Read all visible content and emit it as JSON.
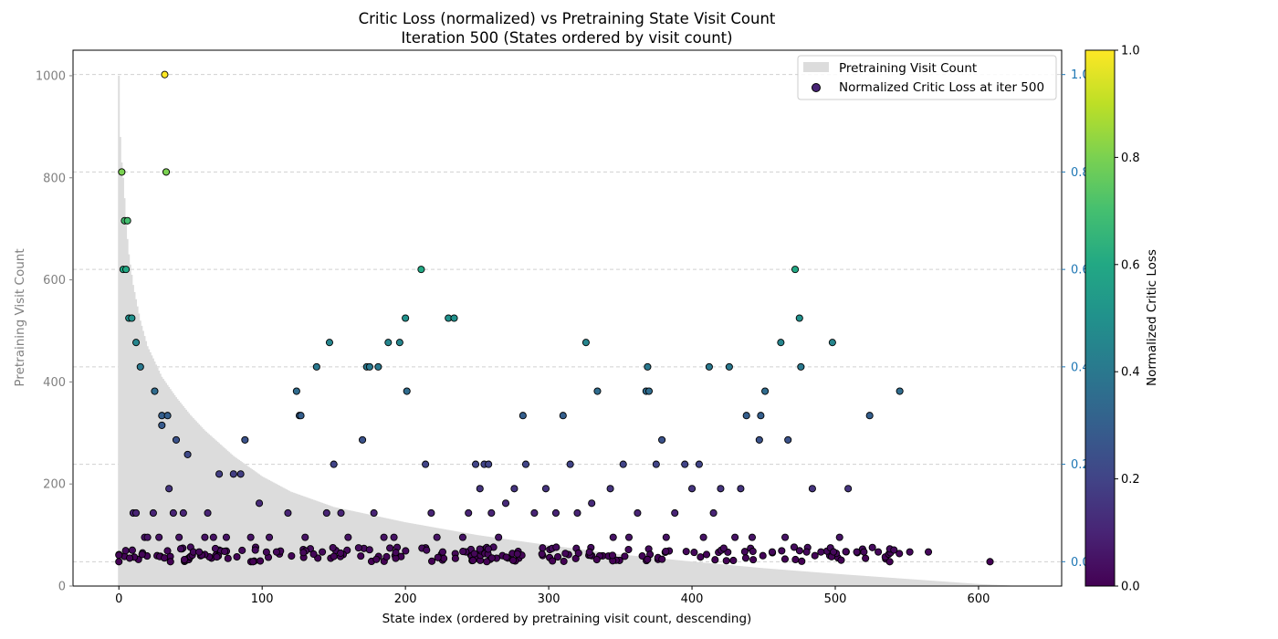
{
  "chart_data": {
    "type": "scatter",
    "title": "Critic Loss (normalized) vs Pretraining State Visit Count",
    "subtitle": "Iteration 500 (States ordered by visit count)",
    "xlabel": "State index (ordered by pretraining visit count, descending)",
    "ylabel_left": "Pretraining Visit Count",
    "colorbar_label": "Normalized Critic Loss",
    "xlim": [
      -32,
      658
    ],
    "ylim_left": [
      0,
      1050
    ],
    "ylim_right": [
      -0.05,
      1.05
    ],
    "x_ticks": [
      "0",
      "100",
      "200",
      "300",
      "400",
      "500",
      "600"
    ],
    "y_ticks_left": [
      "0",
      "200",
      "400",
      "600",
      "800",
      "1000"
    ],
    "y_ticks_right": [
      "0.0",
      "0.2",
      "0.4",
      "0.6",
      "0.8",
      "1.0"
    ],
    "colorbar_ticks": [
      "0.0",
      "0.2",
      "0.4",
      "0.6",
      "0.8",
      "1.0"
    ],
    "grid": "horizontal dashed (right axis)",
    "legend_position": "top-right",
    "legend": [
      "Pretraining Visit Count",
      "Normalized Critic Loss at iter 500"
    ],
    "colors": {
      "visit_bars": "#dcdcdc",
      "point_edge": "#000000",
      "left_axis": "#808080",
      "right_axis": "#1f77b4",
      "colormap": "viridis"
    },
    "visit_count_profile": {
      "n_states": 630,
      "x": [
        0,
        1,
        2,
        3,
        4,
        5,
        7,
        10,
        15,
        20,
        30,
        40,
        50,
        60,
        70,
        80,
        90,
        100,
        120,
        150,
        200,
        250,
        300,
        350,
        400,
        450,
        500,
        550,
        600,
        630
      ],
      "count": [
        1000,
        880,
        830,
        800,
        760,
        710,
        650,
        590,
        520,
        470,
        410,
        370,
        335,
        305,
        280,
        255,
        235,
        215,
        185,
        155,
        125,
        100,
        80,
        62,
        48,
        35,
        24,
        14,
        4,
        0
      ]
    },
    "critic_loss_points": [
      [
        0,
        0.0
      ],
      [
        2,
        0.8
      ],
      [
        3,
        0.6
      ],
      [
        5,
        0.6
      ],
      [
        4,
        0.7
      ],
      [
        6,
        0.7
      ],
      [
        7,
        0.5
      ],
      [
        9,
        0.5
      ],
      [
        12,
        0.45
      ],
      [
        15,
        0.4
      ],
      [
        25,
        0.35
      ],
      [
        30,
        0.3
      ],
      [
        32,
        1.0
      ],
      [
        34,
        0.3
      ],
      [
        36,
        0.0
      ],
      [
        33,
        0.8
      ],
      [
        30,
        0.28
      ],
      [
        40,
        0.25
      ],
      [
        48,
        0.22
      ],
      [
        62,
        0.1
      ],
      [
        70,
        0.18
      ],
      [
        80,
        0.18
      ],
      [
        85,
        0.18
      ],
      [
        88,
        0.25
      ],
      [
        98,
        0.12
      ],
      [
        124,
        0.35
      ],
      [
        126,
        0.3
      ],
      [
        127,
        0.3
      ],
      [
        138,
        0.4
      ],
      [
        147,
        0.45
      ],
      [
        150,
        0.2
      ],
      [
        170,
        0.25
      ],
      [
        173,
        0.4
      ],
      [
        175,
        0.4
      ],
      [
        181,
        0.4
      ],
      [
        188,
        0.45
      ],
      [
        196,
        0.45
      ],
      [
        200,
        0.5
      ],
      [
        201,
        0.35
      ],
      [
        211,
        0.6
      ],
      [
        214,
        0.2
      ],
      [
        230,
        0.5
      ],
      [
        234,
        0.5
      ],
      [
        249,
        0.2
      ],
      [
        255,
        0.2
      ],
      [
        258,
        0.2
      ],
      [
        282,
        0.3
      ],
      [
        284,
        0.2
      ],
      [
        310,
        0.3
      ],
      [
        326,
        0.45
      ],
      [
        334,
        0.35
      ],
      [
        343,
        0.15
      ],
      [
        352,
        0.2
      ],
      [
        368,
        0.35
      ],
      [
        369,
        0.4
      ],
      [
        370,
        0.35
      ],
      [
        375,
        0.2
      ],
      [
        379,
        0.25
      ],
      [
        395,
        0.2
      ],
      [
        405,
        0.2
      ],
      [
        412,
        0.4
      ],
      [
        426,
        0.4
      ],
      [
        434,
        0.15
      ],
      [
        438,
        0.3
      ],
      [
        447,
        0.25
      ],
      [
        448,
        0.3
      ],
      [
        451,
        0.35
      ],
      [
        462,
        0.45
      ],
      [
        467,
        0.25
      ],
      [
        472,
        0.6
      ],
      [
        475,
        0.5
      ],
      [
        476,
        0.4
      ],
      [
        484,
        0.15
      ],
      [
        498,
        0.45
      ],
      [
        509,
        0.15
      ],
      [
        524,
        0.3
      ],
      [
        545,
        0.35
      ],
      [
        608,
        0.0
      ],
      [
        10,
        0.1
      ],
      [
        12,
        0.1
      ],
      [
        18,
        0.05
      ],
      [
        20,
        0.05
      ],
      [
        24,
        0.1
      ],
      [
        28,
        0.05
      ],
      [
        35,
        0.15
      ],
      [
        38,
        0.1
      ],
      [
        42,
        0.05
      ],
      [
        45,
        0.1
      ],
      [
        52,
        0.02
      ],
      [
        56,
        0.02
      ],
      [
        60,
        0.05
      ],
      [
        66,
        0.05
      ],
      [
        75,
        0.05
      ],
      [
        92,
        0.05
      ],
      [
        105,
        0.05
      ],
      [
        110,
        0.02
      ],
      [
        118,
        0.1
      ],
      [
        130,
        0.05
      ],
      [
        142,
        0.02
      ],
      [
        145,
        0.1
      ],
      [
        155,
        0.1
      ],
      [
        160,
        0.05
      ],
      [
        178,
        0.1
      ],
      [
        185,
        0.05
      ],
      [
        192,
        0.05
      ],
      [
        218,
        0.1
      ],
      [
        222,
        0.05
      ],
      [
        226,
        0.02
      ],
      [
        240,
        0.05
      ],
      [
        244,
        0.1
      ],
      [
        252,
        0.15
      ],
      [
        260,
        0.1
      ],
      [
        265,
        0.05
      ],
      [
        270,
        0.12
      ],
      [
        276,
        0.15
      ],
      [
        290,
        0.1
      ],
      [
        298,
        0.15
      ],
      [
        305,
        0.1
      ],
      [
        315,
        0.2
      ],
      [
        320,
        0.1
      ],
      [
        330,
        0.12
      ],
      [
        345,
        0.05
      ],
      [
        356,
        0.05
      ],
      [
        362,
        0.1
      ],
      [
        382,
        0.05
      ],
      [
        388,
        0.1
      ],
      [
        400,
        0.15
      ],
      [
        408,
        0.05
      ],
      [
        415,
        0.1
      ],
      [
        420,
        0.15
      ],
      [
        430,
        0.05
      ],
      [
        442,
        0.05
      ],
      [
        456,
        0.02
      ],
      [
        465,
        0.05
      ],
      [
        480,
        0.02
      ],
      [
        490,
        0.02
      ],
      [
        503,
        0.05
      ],
      [
        515,
        0.02
      ],
      [
        520,
        0.02
      ],
      [
        530,
        0.02
      ],
      [
        538,
        0.0
      ],
      [
        552,
        0.02
      ],
      [
        565,
        0.02
      ]
    ],
    "near_zero_points": {
      "count": 220,
      "x_range": [
        0,
        560
      ],
      "loss_range": [
        0.0,
        0.03
      ]
    }
  }
}
